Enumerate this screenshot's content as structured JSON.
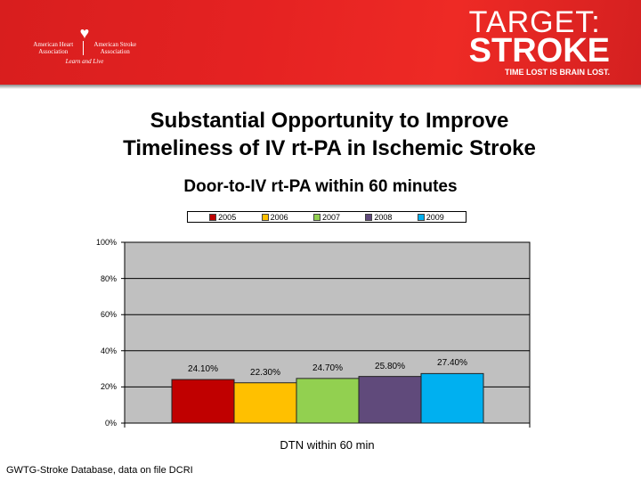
{
  "header": {
    "aha_left": "American Heart Association",
    "aha_right": "American Stroke Association",
    "aha_tagline": "Learn and Live",
    "brand_line1": "TARGET:",
    "brand_line2": "STROKE",
    "brand_tagline": "TIME LOST IS BRAIN LOST."
  },
  "title_line1": "Substantial Opportunity to Improve",
  "title_line2": "Timeliness of IV rt-PA in Ischemic Stroke",
  "footer": "GWTG-Stroke Database, data on file DCRI",
  "chart_data": {
    "type": "bar",
    "title": "Door-to-IV rt-PA within 60 minutes",
    "xlabel": "DTN within 60 min",
    "ylabel": "",
    "categories": [
      "DTN within 60 min"
    ],
    "series": [
      {
        "name": "2005",
        "values": [
          24.1
        ],
        "label": "24.10%",
        "color": "#c00000"
      },
      {
        "name": "2006",
        "values": [
          22.3
        ],
        "label": "22.30%",
        "color": "#ffc000"
      },
      {
        "name": "2007",
        "values": [
          24.7
        ],
        "label": "24.70%",
        "color": "#92d050"
      },
      {
        "name": "2008",
        "values": [
          25.8
        ],
        "label": "25.80%",
        "color": "#604a7b"
      },
      {
        "name": "2009",
        "values": [
          27.4
        ],
        "label": "27.40%",
        "color": "#00b0f0"
      }
    ],
    "ylim": [
      0,
      100
    ],
    "yticks": [
      "0%",
      "20%",
      "40%",
      "60%",
      "80%",
      "100%"
    ],
    "grid": true,
    "legend": "top",
    "plot_background": "#c0c0c0"
  }
}
